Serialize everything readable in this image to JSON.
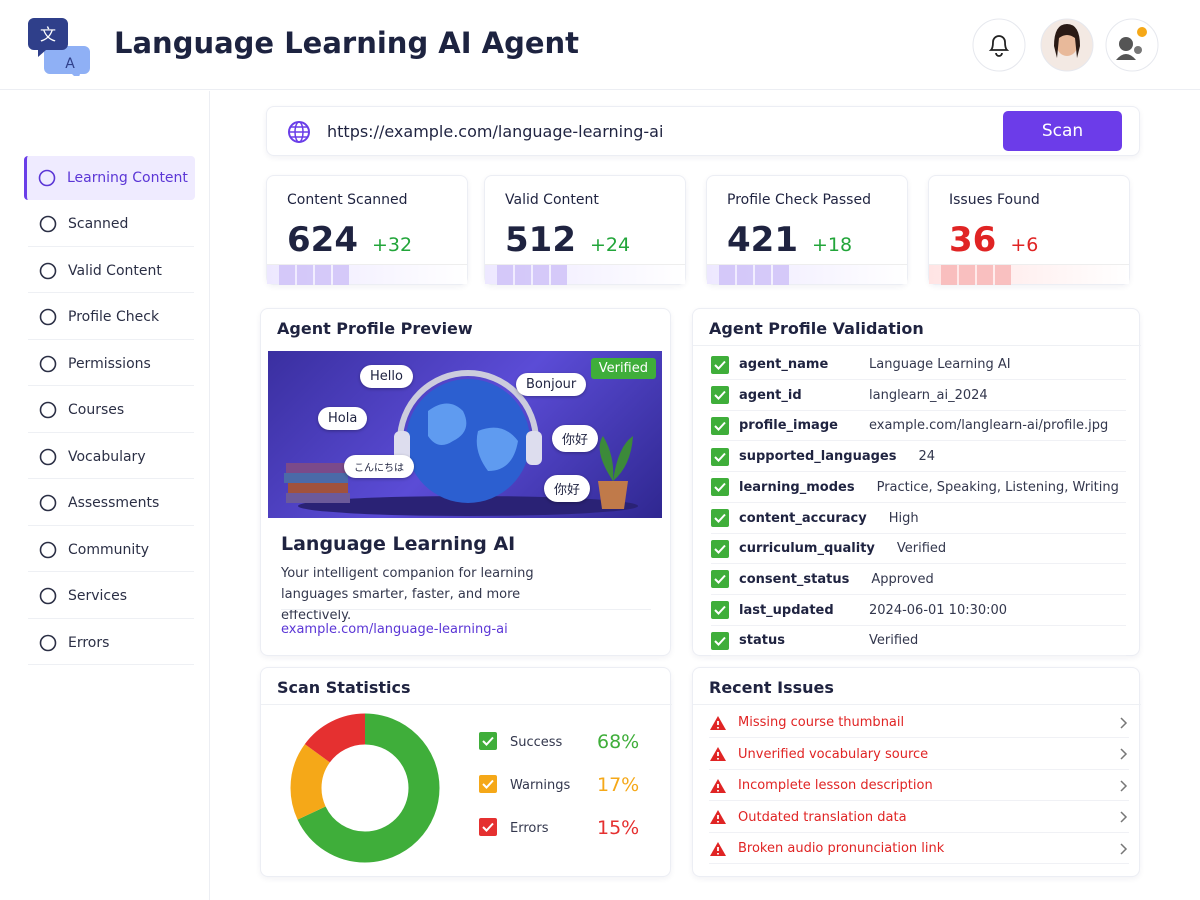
{
  "header": {
    "title": "Language Learning AI Agent"
  },
  "sidebar": {
    "items": [
      "Learning Content",
      "Scanned",
      "Valid Content",
      "Profile Check",
      "Permissions",
      "Courses",
      "Vocabulary",
      "Assessments",
      "Community",
      "Services",
      "Errors"
    ]
  },
  "scan_bar": {
    "url": "https://example.com/language-learning-ai",
    "button": "Scan"
  },
  "stats": [
    {
      "label": "Content Scanned",
      "value": 624,
      "delta": "+32"
    },
    {
      "label": "Valid Content",
      "value": 512,
      "delta": "+24"
    },
    {
      "label": "Profile Check Passed",
      "value": 421,
      "delta": "+18"
    },
    {
      "label": "Issues Found",
      "value": 36,
      "delta": "+6"
    }
  ],
  "profile_preview": {
    "title": "Agent Profile Preview",
    "badge": "Verified",
    "bubbles": [
      "Hello",
      "Bonjour",
      "Hola",
      "你好",
      "こんにちは",
      "你好"
    ],
    "name": "Language Learning AI",
    "description": "Your intelligent companion for learning languages smarter, faster, and more effectively.",
    "link": "example.com/language-learning-ai"
  },
  "profile_validation": {
    "title": "Agent Profile Validation",
    "rows": [
      [
        "agent_name",
        "Language Learning AI"
      ],
      [
        "agent_id",
        "langlearn_ai_2024"
      ],
      [
        "profile_image",
        "example.com/langlearn-ai/profile.jpg"
      ],
      [
        "supported_languages",
        "24"
      ],
      [
        "learning_modes",
        "Practice, Speaking, Listening, Writing"
      ],
      [
        "content_accuracy",
        "High"
      ],
      [
        "curriculum_quality",
        "Verified"
      ],
      [
        "consent_status",
        "Approved"
      ],
      [
        "last_updated",
        "2024-06-01 10:30:00"
      ],
      [
        "status",
        "Verified"
      ]
    ]
  },
  "scan_statistics": {
    "title": "Scan Statistics",
    "categories": [
      "Success",
      "Warnings",
      "Errors"
    ],
    "values": [
      68,
      17,
      15
    ],
    "value_labels": [
      "68%",
      "17%",
      "15%"
    ],
    "colors": [
      "#3fae3a",
      "#f5a818",
      "#e53030"
    ]
  },
  "recent_issues": {
    "title": "Recent Issues",
    "items": [
      "Missing course thumbnail",
      "Unverified vocabulary source",
      "Incomplete lesson description",
      "Outdated translation data",
      "Broken audio pronunciation link"
    ]
  }
}
